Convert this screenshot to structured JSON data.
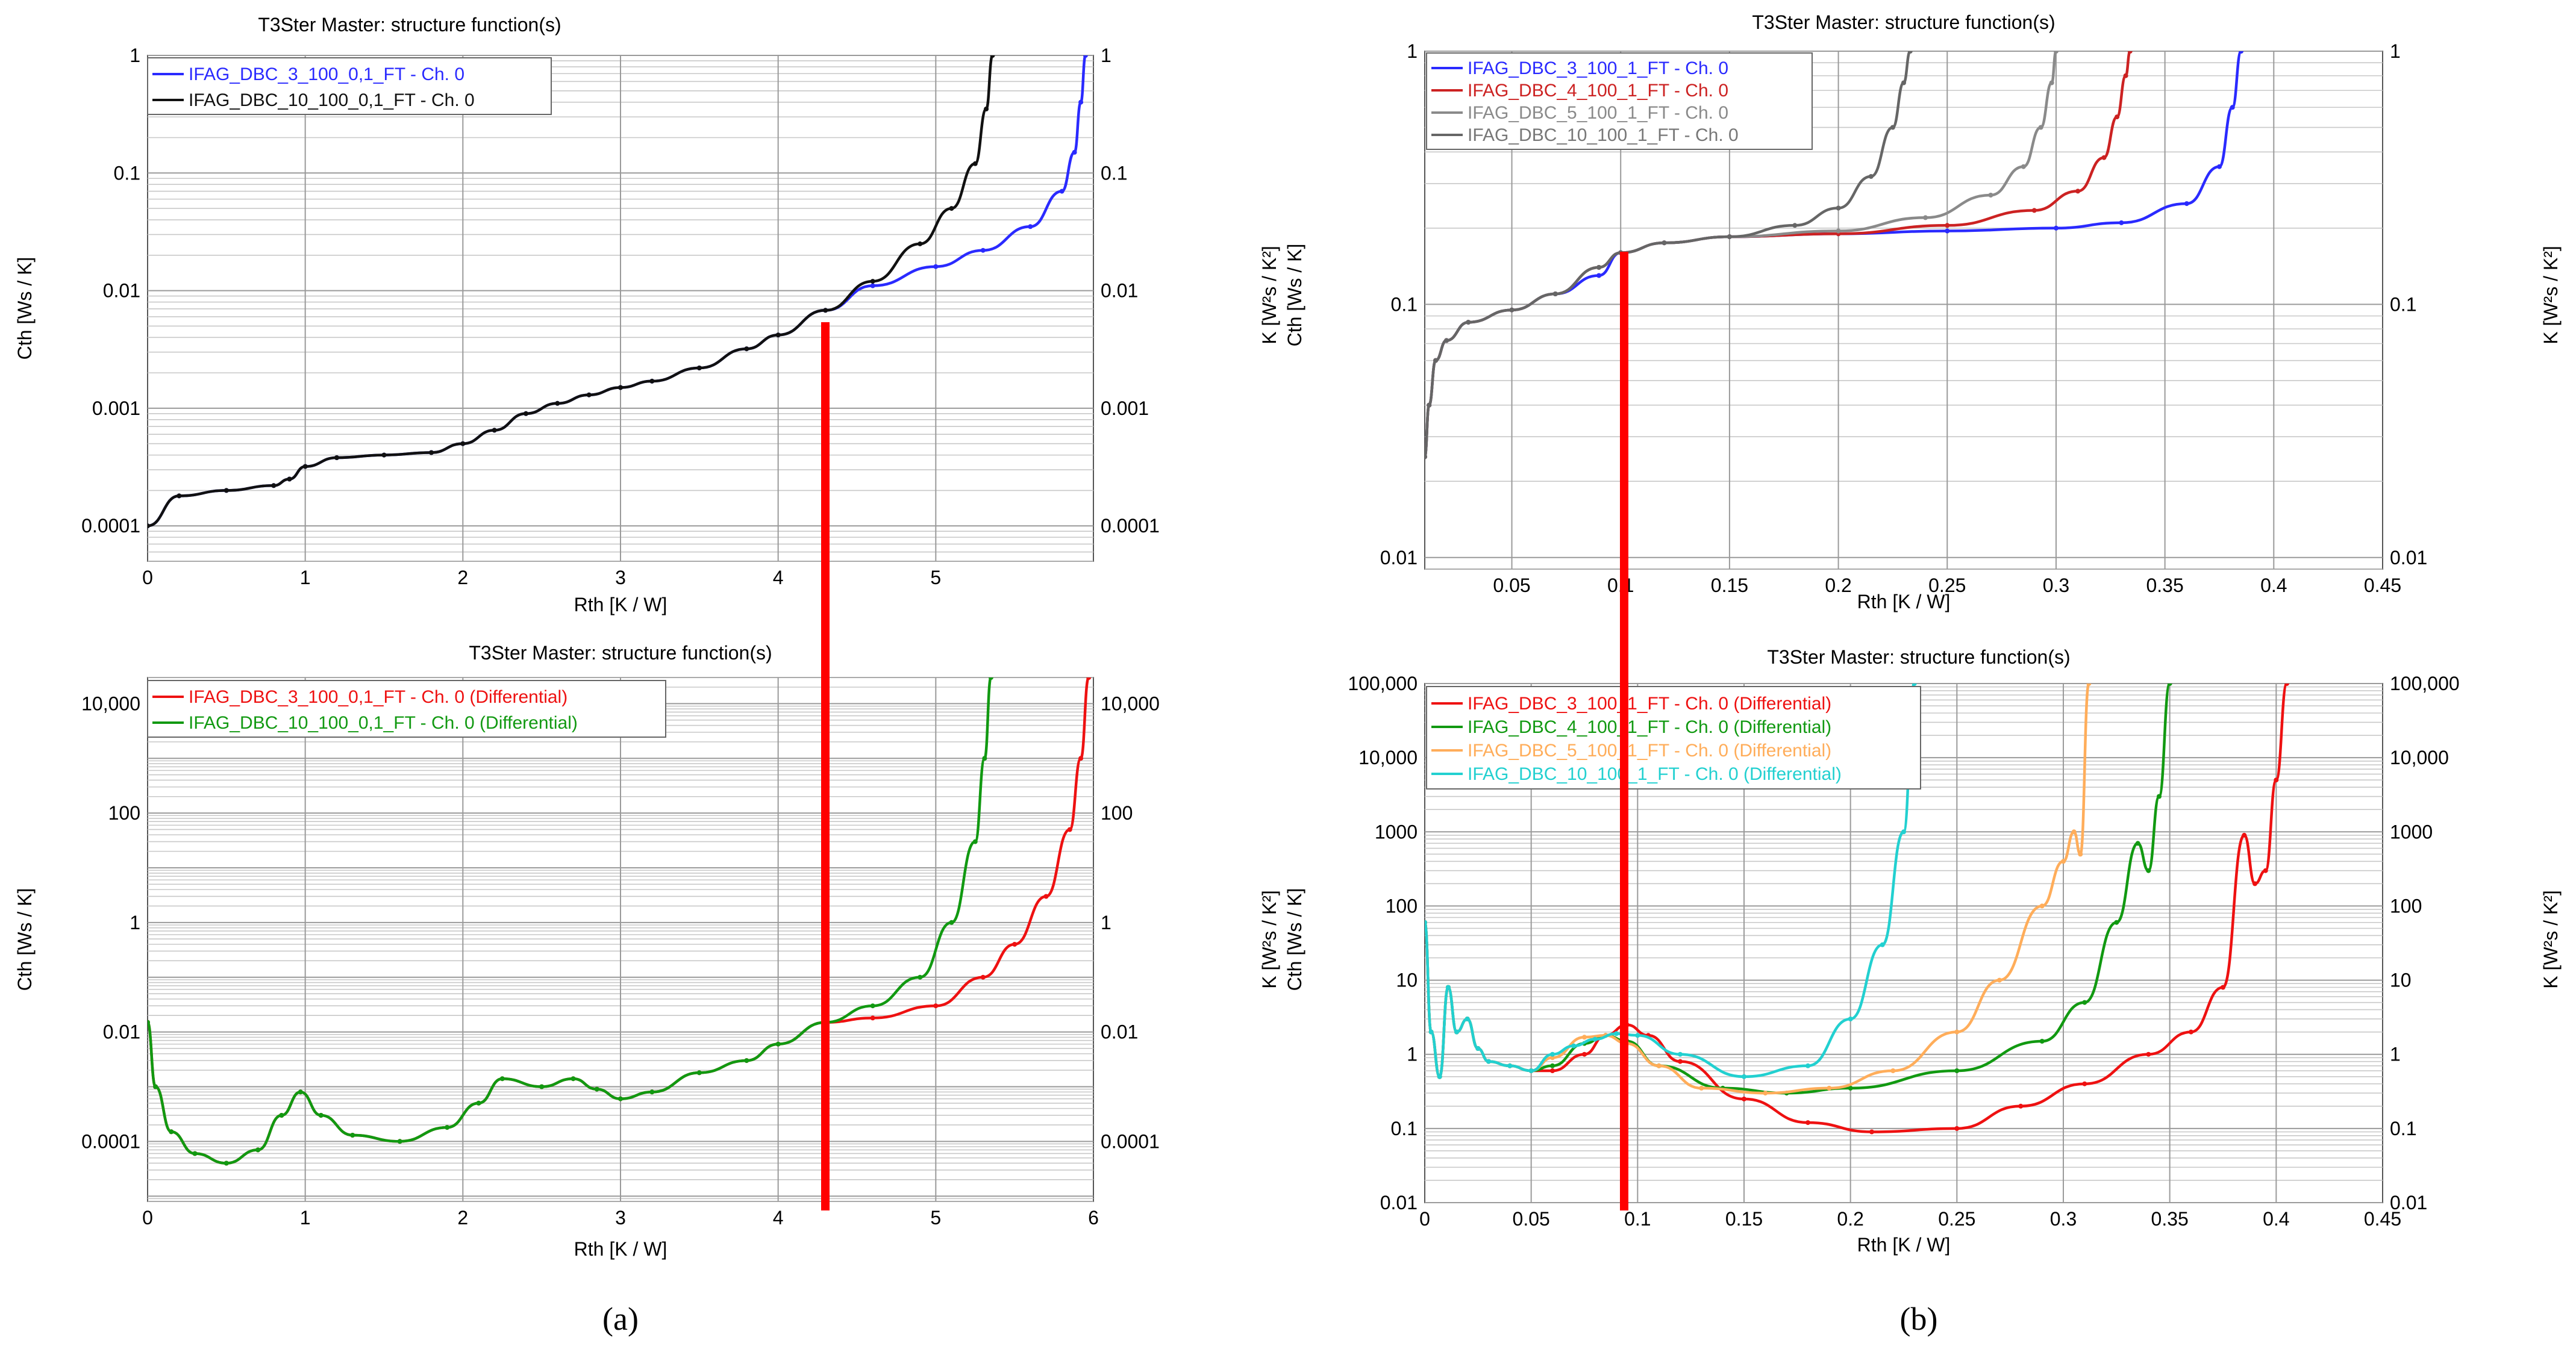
{
  "captions": [
    "(a)",
    "(b)"
  ],
  "colors": {
    "blue": "#2a2aff",
    "black": "#111111",
    "red": "#ee1111",
    "green": "#119911",
    "dark_red": "#cc2222",
    "gray": "#8a8a8a",
    "dark_gray": "#666666",
    "orange": "#ffad5a",
    "cyan": "#22d0d0",
    "marker": "#ff0000"
  },
  "chart_data": [
    {
      "id": "a_top",
      "type": "line",
      "title": "T3Ster Master: structure function(s)",
      "xlabel": "Rth  [K / W]",
      "ylabel": "Cth  [Ws / K]",
      "yscale": "log",
      "xlim": [
        0,
        6
      ],
      "ylim": [
        5e-05,
        1
      ],
      "xticks": [
        0,
        1,
        2,
        3,
        4,
        5
      ],
      "xtick_labels": [
        "0",
        "1",
        "2",
        "3",
        "4",
        "5"
      ],
      "yticks": [
        0.0001,
        0.001,
        0.01,
        0.1,
        1
      ],
      "ytick_labels": [
        "0.0001",
        "0.001",
        "0.01",
        "0.1",
        "1"
      ],
      "grid": true,
      "legend_position": "top-left",
      "series": [
        {
          "name": "IFAG_DBC_3_100_0,1_FT - Ch. 0",
          "color": "#2a2aff",
          "x": [
            0,
            0.2,
            0.5,
            0.8,
            0.9,
            1.0,
            1.2,
            1.5,
            1.8,
            2.0,
            2.2,
            2.4,
            2.6,
            2.8,
            3.0,
            3.2,
            3.5,
            3.8,
            4.0,
            4.3,
            4.6,
            5.0,
            5.3,
            5.6,
            5.8,
            5.88,
            5.92,
            5.95
          ],
          "y": [
            0.0001,
            0.00018,
            0.0002,
            0.00022,
            0.00025,
            0.00032,
            0.00038,
            0.0004,
            0.00042,
            0.0005,
            0.00065,
            0.0009,
            0.0011,
            0.0013,
            0.0015,
            0.0017,
            0.0022,
            0.0032,
            0.0042,
            0.0068,
            0.011,
            0.016,
            0.022,
            0.035,
            0.07,
            0.15,
            0.4,
            1
          ]
        },
        {
          "name": "IFAG_DBC_10_100_0,1_FT - Ch. 0",
          "color": "#111111",
          "x": [
            0,
            0.2,
            0.5,
            0.8,
            0.9,
            1.0,
            1.2,
            1.5,
            1.8,
            2.0,
            2.2,
            2.4,
            2.6,
            2.8,
            3.0,
            3.2,
            3.5,
            3.8,
            4.0,
            4.3,
            4.6,
            4.9,
            5.1,
            5.25,
            5.32,
            5.36
          ],
          "y": [
            0.0001,
            0.00018,
            0.0002,
            0.00022,
            0.00025,
            0.00032,
            0.00038,
            0.0004,
            0.00042,
            0.0005,
            0.00065,
            0.0009,
            0.0011,
            0.0013,
            0.0015,
            0.0017,
            0.0022,
            0.0032,
            0.0042,
            0.0068,
            0.012,
            0.025,
            0.05,
            0.12,
            0.35,
            1
          ]
        }
      ]
    },
    {
      "id": "a_bottom",
      "type": "line",
      "title": "T3Ster Master: structure function(s)",
      "xlabel": "Rth  [K / W]",
      "ylabel": "Cth  [Ws / K]",
      "yscale": "log",
      "xlim": [
        0,
        6
      ],
      "ylim": [
        8e-06,
        30000
      ],
      "xticks": [
        0,
        1,
        2,
        3,
        4,
        5,
        6
      ],
      "xtick_labels": [
        "0",
        "1",
        "2",
        "3",
        "4",
        "5",
        "6"
      ],
      "yticks": [
        0.0001,
        0.01,
        1,
        100,
        10000
      ],
      "ytick_labels": [
        "0.0001",
        "0.01",
        "1",
        "100",
        "10,000"
      ],
      "right_ytick_labels": [
        "0.0001",
        "0.01",
        "1",
        "100",
        "10,000"
      ],
      "grid": true,
      "legend_position": "top-left",
      "series": [
        {
          "name": "IFAG_DBC_3_100_0,1_FT - Ch. 0 (Differential)",
          "color": "#ee1111",
          "x": [
            0,
            0.05,
            0.15,
            0.3,
            0.5,
            0.7,
            0.85,
            0.97,
            1.1,
            1.3,
            1.6,
            1.9,
            2.1,
            2.25,
            2.5,
            2.7,
            2.85,
            3.0,
            3.2,
            3.5,
            3.8,
            4.0,
            4.3,
            4.6,
            5.0,
            5.3,
            5.5,
            5.7,
            5.85,
            5.92,
            5.97
          ],
          "y": [
            0.015,
            0.001,
            0.00015,
            6e-05,
            4e-05,
            7e-05,
            0.0003,
            0.0008,
            0.0003,
            0.00013,
            0.0001,
            0.00018,
            0.0005,
            0.0014,
            0.001,
            0.0014,
            0.0009,
            0.0006,
            0.0008,
            0.0018,
            0.003,
            0.006,
            0.015,
            0.018,
            0.03,
            0.1,
            0.4,
            3,
            50,
            1000,
            30000
          ]
        },
        {
          "name": "IFAG_DBC_10_100_0,1_FT - Ch. 0 (Differential)",
          "color": "#119911",
          "x": [
            0,
            0.05,
            0.15,
            0.3,
            0.5,
            0.7,
            0.85,
            0.97,
            1.1,
            1.3,
            1.6,
            1.9,
            2.1,
            2.25,
            2.5,
            2.7,
            2.85,
            3.0,
            3.2,
            3.5,
            3.8,
            4.0,
            4.3,
            4.6,
            4.9,
            5.1,
            5.25,
            5.31,
            5.35
          ],
          "y": [
            0.015,
            0.001,
            0.00015,
            6e-05,
            4e-05,
            7e-05,
            0.0003,
            0.0008,
            0.0003,
            0.00013,
            0.0001,
            0.00018,
            0.0005,
            0.0014,
            0.001,
            0.0014,
            0.0009,
            0.0006,
            0.0008,
            0.0018,
            0.003,
            0.006,
            0.015,
            0.03,
            0.1,
            1,
            30,
            1000,
            30000
          ]
        }
      ]
    },
    {
      "id": "b_top",
      "type": "line",
      "title": "T3Ster Master: structure function(s)",
      "xlabel": "Rth  [K / W]",
      "ylabel": "Cth  [Ws / K]",
      "ylabel_secondary": "K  [W²s / K²]",
      "right_ylabel": "K  [W²s / K²]",
      "yscale": "log",
      "xlim": [
        0.01,
        0.45
      ],
      "ylim": [
        0.009,
        1
      ],
      "xticks": [
        0.05,
        0.1,
        0.15,
        0.2,
        0.25,
        0.3,
        0.35,
        0.4,
        0.45
      ],
      "xtick_labels": [
        "0.05",
        "0.1",
        "0.15",
        "0.2",
        "0.25",
        "0.3",
        "0.35",
        "0.4",
        "0.45"
      ],
      "yticks": [
        0.01,
        0.1,
        1
      ],
      "ytick_labels": [
        "0.01",
        "0.1",
        "1"
      ],
      "grid": true,
      "legend_position": "top-left",
      "series": [
        {
          "name": "IFAG_DBC_3_100_1_FT - Ch. 0",
          "color": "#2a2aff",
          "x": [
            0.01,
            0.012,
            0.015,
            0.02,
            0.03,
            0.05,
            0.07,
            0.09,
            0.1,
            0.12,
            0.15,
            0.2,
            0.25,
            0.3,
            0.33,
            0.36,
            0.375,
            0.381,
            0.385
          ],
          "y": [
            0.025,
            0.04,
            0.06,
            0.072,
            0.085,
            0.095,
            0.11,
            0.13,
            0.16,
            0.175,
            0.185,
            0.19,
            0.195,
            0.2,
            0.21,
            0.25,
            0.35,
            0.6,
            1
          ]
        },
        {
          "name": "IFAG_DBC_4_100_1_FT - Ch. 0",
          "color": "#cc2222",
          "x": [
            0.01,
            0.012,
            0.015,
            0.02,
            0.03,
            0.05,
            0.07,
            0.09,
            0.1,
            0.12,
            0.15,
            0.2,
            0.25,
            0.29,
            0.31,
            0.322,
            0.328,
            0.332,
            0.334
          ],
          "y": [
            0.025,
            0.04,
            0.06,
            0.072,
            0.085,
            0.095,
            0.11,
            0.14,
            0.16,
            0.175,
            0.185,
            0.19,
            0.205,
            0.235,
            0.28,
            0.38,
            0.55,
            0.8,
            1
          ]
        },
        {
          "name": "IFAG_DBC_5_100_1_FT - Ch. 0",
          "color": "#8a8a8a",
          "x": [
            0.01,
            0.012,
            0.015,
            0.02,
            0.03,
            0.05,
            0.07,
            0.09,
            0.1,
            0.12,
            0.15,
            0.2,
            0.24,
            0.27,
            0.285,
            0.293,
            0.298,
            0.3
          ],
          "y": [
            0.025,
            0.04,
            0.06,
            0.072,
            0.085,
            0.095,
            0.11,
            0.14,
            0.16,
            0.175,
            0.185,
            0.195,
            0.22,
            0.27,
            0.35,
            0.5,
            0.75,
            1
          ]
        },
        {
          "name": "IFAG_DBC_10_100_1_FT - Ch. 0",
          "color": "#666666",
          "x": [
            0.01,
            0.012,
            0.015,
            0.02,
            0.03,
            0.05,
            0.07,
            0.09,
            0.1,
            0.12,
            0.15,
            0.18,
            0.2,
            0.215,
            0.225,
            0.23,
            0.233
          ],
          "y": [
            0.025,
            0.04,
            0.06,
            0.072,
            0.085,
            0.095,
            0.11,
            0.14,
            0.16,
            0.175,
            0.185,
            0.205,
            0.24,
            0.32,
            0.5,
            0.75,
            1
          ]
        }
      ]
    },
    {
      "id": "b_bottom",
      "type": "line",
      "title": "T3Ster Master: structure function(s)",
      "xlabel": "Rth  [K / W]",
      "ylabel": "Cth  [Ws / K]",
      "ylabel_secondary": "K  [W²s / K²]",
      "right_ylabel": "K  [W²s / K²]",
      "yscale": "log",
      "xlim": [
        0,
        0.45
      ],
      "ylim": [
        0.01,
        100000
      ],
      "xticks": [
        0,
        0.05,
        0.1,
        0.15,
        0.2,
        0.25,
        0.3,
        0.35,
        0.4,
        0.45
      ],
      "xtick_labels": [
        "0",
        "0.05",
        "0.1",
        "0.15",
        "0.2",
        "0.25",
        "0.3",
        "0.35",
        "0.4",
        "0.45"
      ],
      "yticks": [
        0.01,
        0.1,
        1,
        10,
        100,
        1000,
        10000,
        100000
      ],
      "ytick_labels": [
        "0.01",
        "0.1",
        "1",
        "10",
        "100",
        "1000",
        "10,000",
        "100,000"
      ],
      "grid": true,
      "legend_position": "top-left",
      "series": [
        {
          "name": "IFAG_DBC_3_100_1_FT - Ch. 0 (Differential)",
          "color": "#ee1111",
          "x": [
            0,
            0.003,
            0.007,
            0.011,
            0.015,
            0.02,
            0.025,
            0.03,
            0.04,
            0.05,
            0.06,
            0.075,
            0.085,
            0.095,
            0.105,
            0.12,
            0.15,
            0.18,
            0.21,
            0.25,
            0.28,
            0.31,
            0.34,
            0.36,
            0.375,
            0.385,
            0.39,
            0.395,
            0.4,
            0.405
          ],
          "y": [
            60,
            2,
            0.5,
            8,
            2,
            3,
            1.2,
            0.8,
            0.7,
            0.6,
            0.6,
            1,
            1.8,
            2.5,
            1.8,
            0.8,
            0.25,
            0.12,
            0.09,
            0.1,
            0.2,
            0.4,
            1,
            2,
            8,
            900,
            200,
            300,
            5000,
            100000
          ]
        },
        {
          "name": "IFAG_DBC_4_100_1_FT - Ch. 0 (Differential)",
          "color": "#119911",
          "x": [
            0,
            0.003,
            0.007,
            0.011,
            0.015,
            0.02,
            0.025,
            0.03,
            0.04,
            0.05,
            0.06,
            0.075,
            0.085,
            0.095,
            0.11,
            0.14,
            0.17,
            0.2,
            0.25,
            0.29,
            0.31,
            0.325,
            0.335,
            0.34,
            0.345,
            0.35
          ],
          "y": [
            60,
            2,
            0.5,
            8,
            2,
            3,
            1.2,
            0.8,
            0.7,
            0.6,
            0.7,
            1.4,
            1.8,
            1.5,
            0.7,
            0.35,
            0.3,
            0.35,
            0.6,
            1.5,
            5,
            60,
            700,
            300,
            3000,
            100000
          ]
        },
        {
          "name": "IFAG_DBC_5_100_1_FT - Ch. 0 (Differential)",
          "color": "#ffad5a",
          "x": [
            0,
            0.003,
            0.007,
            0.011,
            0.015,
            0.02,
            0.025,
            0.03,
            0.04,
            0.05,
            0.06,
            0.075,
            0.085,
            0.095,
            0.11,
            0.13,
            0.16,
            0.19,
            0.22,
            0.25,
            0.27,
            0.29,
            0.3,
            0.305,
            0.308,
            0.312
          ],
          "y": [
            60,
            2,
            0.5,
            8,
            2,
            3,
            1.2,
            0.8,
            0.7,
            0.6,
            0.9,
            1.7,
            1.8,
            1.4,
            0.7,
            0.35,
            0.3,
            0.35,
            0.6,
            2,
            10,
            100,
            400,
            1000,
            500,
            100000
          ]
        },
        {
          "name": "IFAG_DBC_10_100_1_FT - Ch. 0 (Differential)",
          "color": "#22d0d0",
          "x": [
            0,
            0.003,
            0.007,
            0.011,
            0.015,
            0.02,
            0.025,
            0.03,
            0.04,
            0.05,
            0.06,
            0.07,
            0.08,
            0.09,
            0.1,
            0.12,
            0.15,
            0.18,
            0.2,
            0.215,
            0.225,
            0.23
          ],
          "y": [
            60,
            2,
            0.5,
            8,
            2,
            3,
            1.2,
            0.8,
            0.7,
            0.6,
            1,
            1.3,
            1.6,
            1.9,
            1.8,
            1,
            0.5,
            0.7,
            3,
            30,
            1000,
            100000
          ]
        }
      ]
    }
  ]
}
